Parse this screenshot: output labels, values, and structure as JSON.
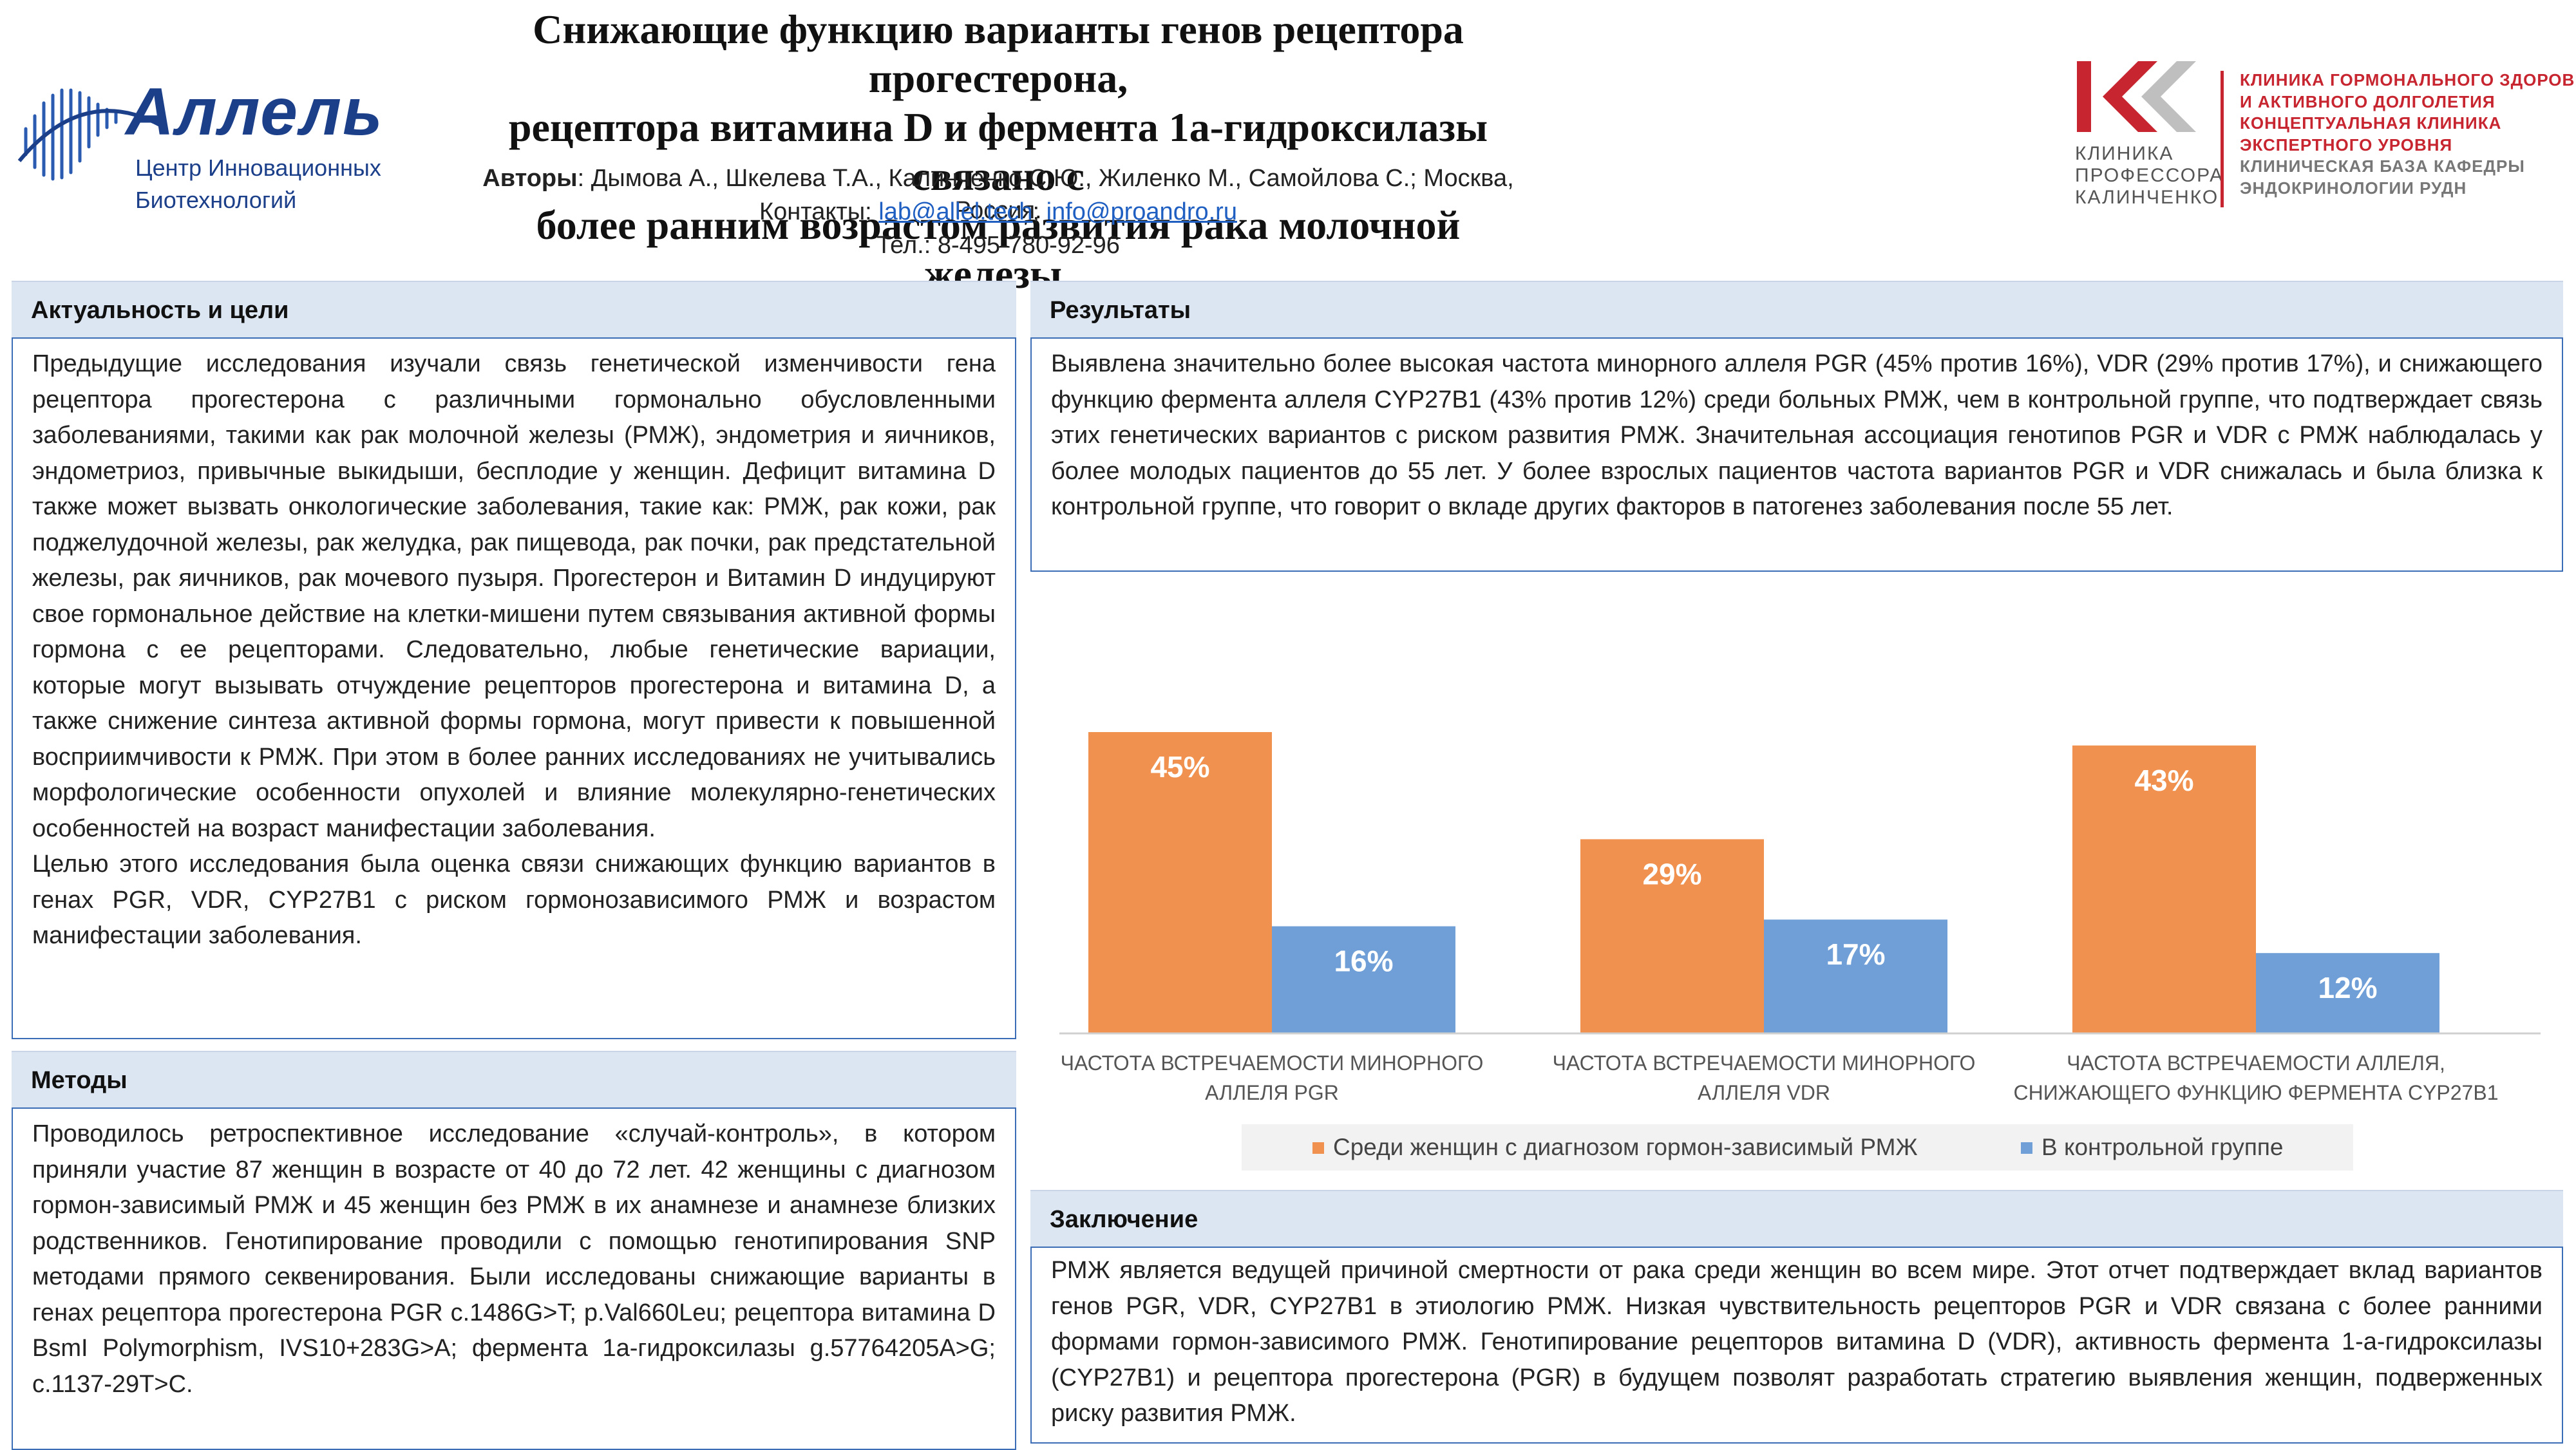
{
  "header": {
    "logo_left": {
      "name": "Аллель",
      "sub_line1": "Центр Инновационных",
      "sub_line2": "Биотехнологий",
      "icon": "allel-helix-logo-icon",
      "color": "#1c3f8a"
    },
    "title_line1": "Снижающие функцию варианты генов рецептора прогестерона,",
    "title_line2": "рецептора витамина D и фермента 1а-гидроксилазы связано с",
    "title_line3": "более ранним возрастом развития рака молочной железы.",
    "authors_label": "Авторы",
    "authors": ": Дымова А., Шкелева Т.А., Калинченко С.Ю., Жиленко М., Самойлова С.; Москва, Россия.",
    "contacts_label": "Контакты: ",
    "email1": "lab@allel.tech",
    "separator": "; ",
    "email2": "info@proandro.ru",
    "phone": "Тел.: 8-495-780-92-96",
    "logo_right": {
      "icon": "kk-clinic-logo-icon",
      "sub_line1": "КЛИНИКА",
      "sub_line2": "ПРОФЕССОРА",
      "sub_line3": "КАЛИНЧЕНКО",
      "right_line1": "КЛИНИКА ГОРМОНАЛЬНОГО ЗДОРОВЬЯ",
      "right_line2": "И АКТИВНОГО ДОЛГОЛЕТИЯ",
      "right_line3": "КОНЦЕПТУАЛЬНАЯ КЛИНИКА",
      "right_line4": "ЭКСПЕРТНОГО УРОВНЯ",
      "right_line5": "КЛИНИЧЕСКАЯ БАЗА КАФЕДРЫ",
      "right_line6": "ЭНДОКРИНОЛОГИИ РУДН",
      "accent": "#c7252f"
    }
  },
  "sections": {
    "intro": {
      "heading": "Актуальность и цели",
      "text1": "Предыдущие исследования изучали связь генетической изменчивости гена рецептора прогестерона с различными гормонально обусловленными заболеваниями, такими как рак молочной железы (РМЖ), эндометрия и яичников, эндометриоз, привычные выкидыши, бесплодие у женщин. Дефицит витамина D также может вызвать онкологические заболевания, такие как: РМЖ, рак кожи, рак поджелудочной железы, рак желудка, рак пищевода, рак почки, рак предстательной железы, рак яичников, рак мочевого пузыря. Прогестерон и Витамин D индуцируют свое гормональное действие на клетки-мишени путем связывания активной формы гормона с ее рецепторами. Следовательно, любые генетические вариации, которые могут вызывать отчуждение рецепторов прогестерона и витамина D, а также снижение синтеза активной формы гормона, могут привести к повышенной восприимчивости к РМЖ. При этом в более ранних исследованиях не учитывались морфологические особенности опухолей и влияние молекулярно-генетических особенностей на возраст манифестации заболевания.",
      "text2": "Целью этого исследования была оценка связи снижающих функцию вариантов в генах PGR, VDR, CYP27B1 с риском гормонозависимого РМЖ и возрастом манифестации заболевания."
    },
    "methods": {
      "heading": "Методы",
      "text": "Проводилось ретроспективное исследование «случай-контроль», в котором приняли участие 87 женщин в возрасте от 40 до 72 лет. 42 женщины с диагнозом гормон-зависимый РМЖ и 45 женщин без РМЖ в их анамнезе и анамнезе близких родственников. Генотипирование проводили с помощью генотипирования SNP методами прямого секвенирования. Были исследованы снижающие варианты в генах рецептора прогестерона PGR c.1486G>T; p.Val660Leu; рецептора витамина D BsmI Polymorphism, IVS10+283G>A; фермента 1а-гидроксилазы g.57764205A>G; c.1137-29T>C."
    },
    "results": {
      "heading": "Результаты",
      "text": "Выявлена значительно более высокая частота минорного аллеля PGR (45% против 16%), VDR (29% против 17%), и снижающего функцию фермента аллеля CYP27B1 (43% против 12%) среди больных РМЖ, чем в контрольной группе, что подтверждает связь этих генетических вариантов с риском развития РМЖ. Значительная ассоциация генотипов PGR и VDR с РМЖ наблюдалась у более молодых пациентов до 55 лет. У более взрослых пациентов частота вариантов PGR и VDR снижалась и была близка к контрольной группе, что говорит о вкладе других факторов в патогенез заболевания после 55 лет."
    },
    "conclusion": {
      "heading": "Заключение",
      "text": "РМЖ является ведущей причиной смертности от рака среди женщин во всем мире. Этот отчет подтверждает вклад вариантов генов PGR, VDR, CYP27B1 в этиологию РМЖ. Низкая чувствительность рецепторов PGR и VDR связана с более ранними формами гормон-зависимого РМЖ. Генотипирование рецепторов витамина D (VDR), активность фермента 1-а-гидроксилазы (CYP27B1) и рецептора прогестерона (PGR) в будущем позволят разработать стратегию выявления женщин, подверженных риску развития РМЖ."
    }
  },
  "chart_data": {
    "type": "bar",
    "title": "",
    "categories": [
      [
        "ЧАСТОТА ВСТРЕЧАЕМОСТИ МИНОРНОГО",
        "АЛЛЕЛЯ PGR"
      ],
      [
        "ЧАСТОТА ВСТРЕЧАЕМОСТИ МИНОРНОГО",
        "АЛЛЕЛЯ  VDR"
      ],
      [
        "ЧАСТОТА ВСТРЕЧАЕМОСТИ АЛЛЕЛЯ,",
        "СНИЖАЮЩЕГО ФУНКЦИЮ ФЕРМЕНТА CYP27B1"
      ]
    ],
    "series": [
      {
        "name": "Среди женщин с диагнозом гормон-зависимый РМЖ",
        "values": [
          45,
          29,
          43
        ],
        "labels": [
          "45%",
          "29%",
          "43%"
        ],
        "color": "#f0914f"
      },
      {
        "name": "В контрольной группе",
        "values": [
          16,
          17,
          12
        ],
        "labels": [
          "16%",
          "17%",
          "12%"
        ],
        "color": "#6f9fd6"
      }
    ],
    "ylim": [
      0,
      50
    ],
    "xlabel": "",
    "ylabel": "",
    "grid": false,
    "legend_position": "bottom"
  }
}
